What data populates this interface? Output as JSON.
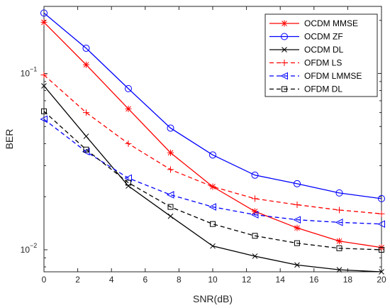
{
  "chart_data": {
    "type": "line",
    "xlabel": "SNR(dB)",
    "ylabel": "BER",
    "xlim": [
      0,
      20
    ],
    "ylim": [
      0.0075,
      0.24
    ],
    "yscale": "log",
    "grid": false,
    "legend_position": "top-right",
    "x": [
      0,
      2.5,
      5,
      7.5,
      10,
      12.5,
      15,
      17.5,
      20
    ],
    "x_ticks": [
      "0",
      "2",
      "4",
      "6",
      "8",
      "10",
      "12",
      "14",
      "16",
      "18",
      "20"
    ],
    "y_ticks": [
      {
        "base": "10",
        "exp": "−1",
        "value": 0.1
      },
      {
        "base": "10",
        "exp": "−2",
        "value": 0.01
      }
    ],
    "series": [
      {
        "name": "OCDM MMSE",
        "color": "#ff0000",
        "dash": "solid",
        "marker": "asterisk",
        "values": [
          0.195,
          0.112,
          0.063,
          0.0355,
          0.0228,
          0.0165,
          0.0133,
          0.0112,
          0.0103
        ]
      },
      {
        "name": "OCDM ZF",
        "color": "#0000ff",
        "dash": "solid",
        "marker": "circle",
        "values": [
          0.22,
          0.139,
          0.082,
          0.049,
          0.0345,
          0.0265,
          0.0237,
          0.021,
          0.0195
        ]
      },
      {
        "name": "OCDM DL",
        "color": "#000000",
        "dash": "solid",
        "marker": "x",
        "values": [
          0.085,
          0.044,
          0.023,
          0.0155,
          0.0105,
          0.0092,
          0.0082,
          0.0077,
          0.0075
        ]
      },
      {
        "name": "OFDM LS",
        "color": "#ff0000",
        "dash": "dashed",
        "marker": "plus",
        "values": [
          0.098,
          0.06,
          0.04,
          0.0285,
          0.0228,
          0.0195,
          0.018,
          0.0168,
          0.016
        ]
      },
      {
        "name": "OFDM LMMSE",
        "color": "#0000ff",
        "dash": "dashed",
        "marker": "triangle-left",
        "values": [
          0.055,
          0.036,
          0.0255,
          0.0205,
          0.0175,
          0.0158,
          0.0148,
          0.0143,
          0.014
        ]
      },
      {
        "name": "OFDM DL",
        "color": "#000000",
        "dash": "dashed",
        "marker": "square",
        "values": [
          0.061,
          0.037,
          0.024,
          0.0175,
          0.014,
          0.012,
          0.0109,
          0.0102,
          0.01
        ]
      }
    ]
  }
}
